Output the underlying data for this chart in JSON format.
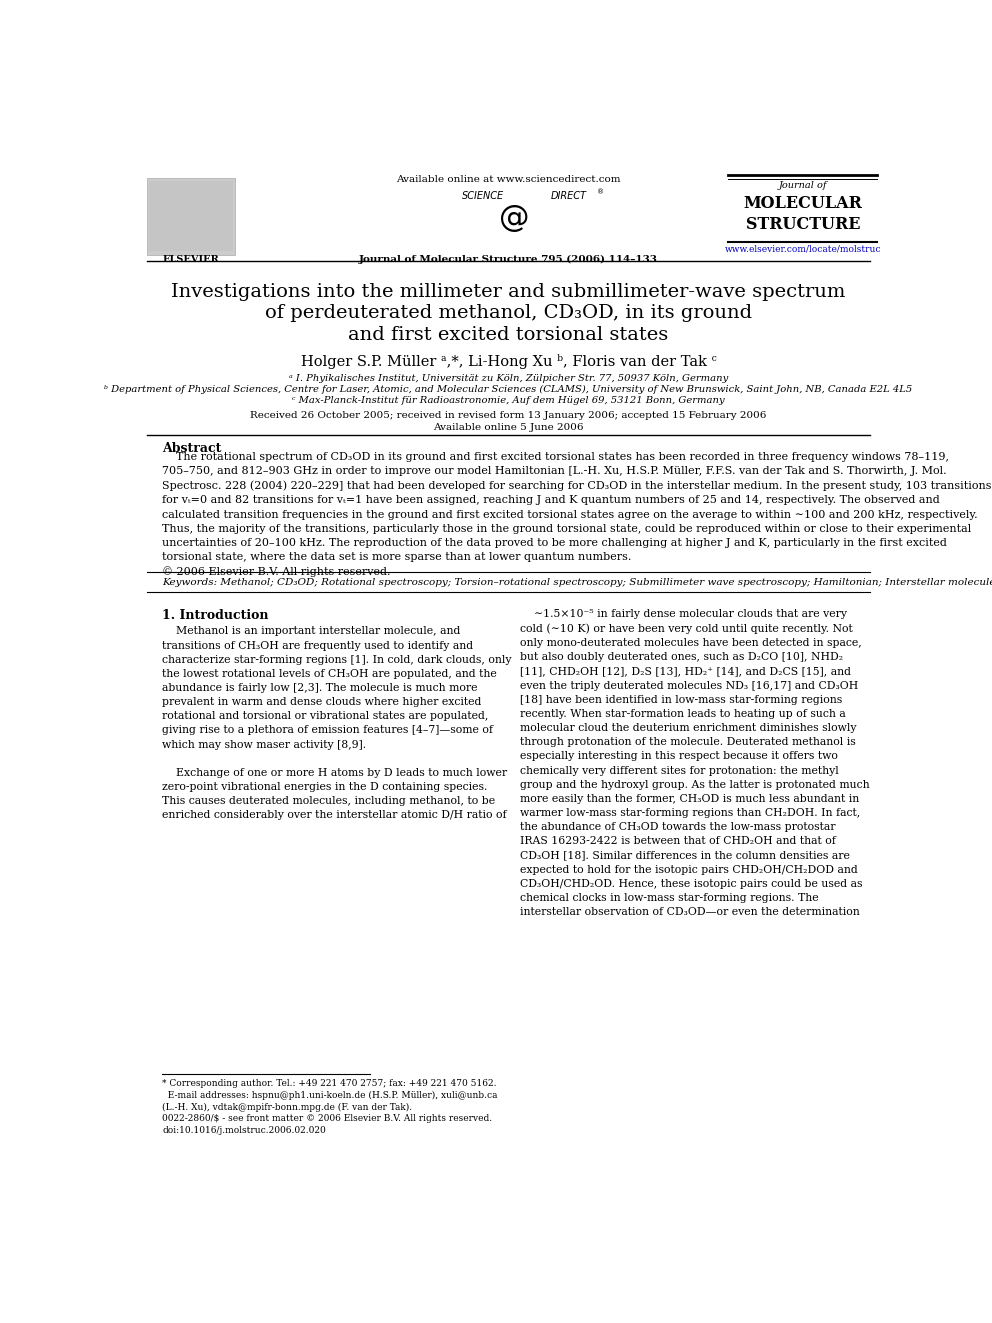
{
  "bg_color": "#ffffff",
  "title_line1": "Investigations into the millimeter and submillimeter-wave spectrum",
  "title_line2": "of perdeuterated methanol, CD₃OD, in its ground",
  "title_line3": "and first excited torsional states",
  "authors": "Holger S.P. Müller ᵃ,*, Li-Hong Xu ᵇ, Floris van der Tak ᶜ",
  "affil1": "ᵃ I. Phyikalisches Institut, Universität zu Köln, Zülpicher Str. 77, 50937 Köln, Germany",
  "affil2": "ᵇ Department of Physical Sciences, Centre for Laser, Atomic, and Molecular Sciences (CLAMS), University of New Brunswick, Saint John, NB, Canada E2L 4L5",
  "affil3": "ᶜ Max-Planck-Institut für Radioastronomie, Auf dem Hügel 69, 53121 Bonn, Germany",
  "received": "Received 26 October 2005; received in revised form 13 January 2006; accepted 15 February 2006",
  "available": "Available online 5 June 2006",
  "header_available": "Available online at www.sciencedirect.com",
  "journal_line": "Journal of Molecular Structure 795 (2006) 114–133",
  "journal_name_line1": "Journal of",
  "journal_name_line2": "MOLECULAR",
  "journal_name_line3": "STRUCTURE",
  "journal_url": "www.elsevier.com/locate/molstruc",
  "abstract_title": "Abstract",
  "keywords_text": "Keywords: Methanol; CD₃OD; Rotational spectroscopy; Torsion–rotational spectroscopy; Submillimeter wave spectroscopy; Hamiltonian; Interstellar molecule",
  "intro_title": "1. Introduction",
  "footnote_line1": "* Corresponding author. Tel.: +49 221 470 2757; fax: +49 221 470 5162.",
  "footnote_line2": "  E-mail addresses: hspnu@ph1.uni-koeln.de (H.S.P. Müller), xuli@unb.ca",
  "footnote_line3": "(L.-H. Xu), vdtak@mpifr-bonn.mpg.de (F. van der Tak).",
  "issn_line1": "0022-2860/$ - see front matter © 2006 Elsevier B.V. All rights reserved.",
  "issn_line2": "doi:10.1016/j.molstruc.2006.02.020",
  "science_direct": "SCIENCE  à  DIRECT®",
  "elsevier": "ELSEVIER"
}
